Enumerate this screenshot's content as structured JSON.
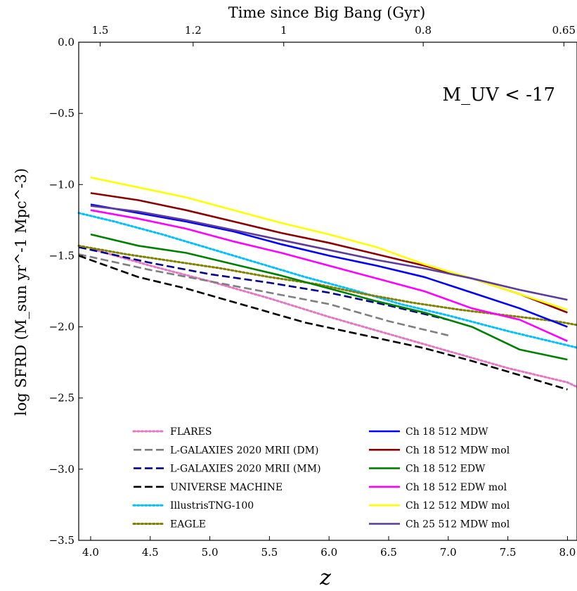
{
  "chart_data": {
    "type": "line",
    "annotation": "M_UV < -17",
    "xlabel": "z",
    "ylabel": "log SFRD (M_sun yr^-1 Mpc^-3)",
    "top_xlabel": "Time since Big Bang (Gyr)",
    "xlim": [
      3.9,
      8.08
    ],
    "ylim": [
      -3.5,
      0.0
    ],
    "xticks": [
      4.0,
      4.5,
      5.0,
      5.5,
      6.0,
      6.5,
      7.0,
      7.5,
      8.0
    ],
    "xtick_labels": [
      "4.0",
      "4.5",
      "5.0",
      "5.5",
      "6.0",
      "6.5",
      "7.0",
      "7.5",
      "8.0"
    ],
    "yticks": [
      0.0,
      -0.5,
      -1.0,
      -1.5,
      -2.0,
      -2.5,
      -3.0,
      -3.5
    ],
    "ytick_labels": [
      "0.0",
      "−0.5",
      "−1.0",
      "−1.5",
      "−2.0",
      "−2.5",
      "−3.0",
      "−3.5"
    ],
    "top_ticks": [
      {
        "z": 4.08,
        "label": "1.5"
      },
      {
        "z": 4.86,
        "label": "1.2"
      },
      {
        "z": 5.62,
        "label": "1"
      },
      {
        "z": 6.79,
        "label": "0.8"
      },
      {
        "z": 7.97,
        "label": "0.65"
      }
    ],
    "legend_placement": "lower center, two columns",
    "grid": false,
    "series": [
      {
        "name": "FLARES",
        "color": "#e377c2",
        "style": "dotted",
        "legend_col": 0,
        "x": [
          4.0,
          4.5,
          5.0,
          5.5,
          6.0,
          6.5,
          7.0,
          7.5,
          8.0,
          8.1
        ],
        "y": [
          -1.45,
          -1.57,
          -1.68,
          -1.8,
          -1.93,
          -2.05,
          -2.17,
          -2.29,
          -2.39,
          -2.43
        ]
      },
      {
        "name": "L-GALAXIES 2020 MRII (DM)",
        "color": "#7f7f7f",
        "style": "dashed",
        "legend_col": 0,
        "x": [
          3.9,
          4.5,
          5.0,
          5.5,
          6.0,
          6.5,
          7.0
        ],
        "y": [
          -1.49,
          -1.6,
          -1.68,
          -1.76,
          -1.84,
          -1.96,
          -2.06
        ]
      },
      {
        "name": "L-GALAXIES 2020 MRII (MM)",
        "color": "#00008b",
        "style": "dashed",
        "legend_col": 0,
        "x": [
          3.9,
          4.5,
          5.0,
          5.5,
          6.0,
          6.5,
          7.0
        ],
        "y": [
          -1.44,
          -1.55,
          -1.63,
          -1.69,
          -1.76,
          -1.85,
          -1.95
        ]
      },
      {
        "name": "UNIVERSE MACHINE",
        "color": "#000000",
        "style": "dashed",
        "legend_col": 0,
        "x": [
          3.9,
          4.1,
          4.4,
          4.8,
          5.3,
          5.8,
          6.3,
          6.8,
          7.2,
          7.6,
          8.0
        ],
        "y": [
          -1.5,
          -1.56,
          -1.65,
          -1.73,
          -1.85,
          -1.97,
          -2.06,
          -2.15,
          -2.24,
          -2.34,
          -2.44
        ]
      },
      {
        "name": "IllustrisTNG-100",
        "color": "#00bfff",
        "style": "dotted",
        "legend_col": 0,
        "x": [
          3.9,
          4.2,
          4.6,
          5.0,
          5.4,
          5.8,
          6.2,
          6.6,
          7.0,
          7.5,
          8.1
        ],
        "y": [
          -1.2,
          -1.26,
          -1.35,
          -1.45,
          -1.55,
          -1.65,
          -1.74,
          -1.84,
          -1.92,
          -2.03,
          -2.15
        ]
      },
      {
        "name": "EAGLE",
        "color": "#808000",
        "style": "dotted",
        "legend_col": 0,
        "x": [
          3.9,
          4.3,
          4.7,
          5.1,
          5.5,
          5.9,
          6.3,
          6.7,
          7.1,
          7.5,
          7.9,
          8.1
        ],
        "y": [
          -1.43,
          -1.49,
          -1.54,
          -1.59,
          -1.65,
          -1.7,
          -1.77,
          -1.83,
          -1.88,
          -1.92,
          -1.96,
          -1.99
        ]
      },
      {
        "name": "Ch 18 512 MDW",
        "color": "#0000ff",
        "style": "solid",
        "legend_col": 1,
        "x": [
          4.0,
          4.4,
          4.8,
          5.2,
          5.6,
          6.0,
          6.4,
          6.8,
          7.2,
          7.6,
          8.0
        ],
        "y": [
          -1.14,
          -1.2,
          -1.26,
          -1.33,
          -1.42,
          -1.5,
          -1.57,
          -1.65,
          -1.76,
          -1.87,
          -2.0
        ]
      },
      {
        "name": "Ch 18 512 MDW mol",
        "color": "#8b0000",
        "style": "solid",
        "legend_col": 1,
        "x": [
          4.0,
          4.4,
          4.8,
          5.2,
          5.6,
          6.0,
          6.4,
          6.8,
          7.2,
          7.6,
          8.0
        ],
        "y": [
          -1.06,
          -1.11,
          -1.18,
          -1.26,
          -1.34,
          -1.41,
          -1.49,
          -1.57,
          -1.66,
          -1.77,
          -1.9
        ]
      },
      {
        "name": "Ch 18 512 EDW",
        "color": "#008000",
        "style": "solid",
        "legend_col": 1,
        "x": [
          4.0,
          4.4,
          4.8,
          5.2,
          5.6,
          6.0,
          6.4,
          6.8,
          7.2,
          7.6,
          8.0
        ],
        "y": [
          -1.35,
          -1.43,
          -1.48,
          -1.56,
          -1.64,
          -1.73,
          -1.82,
          -1.9,
          -2.0,
          -2.16,
          -2.23
        ]
      },
      {
        "name": "Ch 18 512 EDW mol",
        "color": "#ff00ff",
        "style": "solid",
        "legend_col": 1,
        "x": [
          4.0,
          4.4,
          4.8,
          5.2,
          5.6,
          6.0,
          6.4,
          6.8,
          7.2,
          7.6,
          8.0
        ],
        "y": [
          -1.18,
          -1.24,
          -1.31,
          -1.4,
          -1.48,
          -1.57,
          -1.66,
          -1.75,
          -1.87,
          -1.95,
          -2.1
        ]
      },
      {
        "name": "Ch 12 512 MDW mol",
        "color": "#ffff00",
        "style": "solid",
        "legend_col": 1,
        "x": [
          4.0,
          4.4,
          4.8,
          5.2,
          5.6,
          6.0,
          6.4,
          6.8,
          7.2,
          7.6,
          8.0
        ],
        "y": [
          -0.95,
          -1.02,
          -1.09,
          -1.18,
          -1.27,
          -1.35,
          -1.44,
          -1.56,
          -1.66,
          -1.77,
          -1.88
        ]
      },
      {
        "name": "Ch 25 512 MDW mol",
        "color": "#5b3c9c",
        "style": "solid",
        "legend_col": 1,
        "x": [
          4.0,
          4.4,
          4.8,
          5.2,
          5.6,
          6.0,
          6.4,
          6.8,
          7.2,
          7.6,
          8.0
        ],
        "y": [
          -1.15,
          -1.19,
          -1.25,
          -1.32,
          -1.39,
          -1.46,
          -1.53,
          -1.59,
          -1.66,
          -1.74,
          -1.81
        ]
      }
    ]
  }
}
